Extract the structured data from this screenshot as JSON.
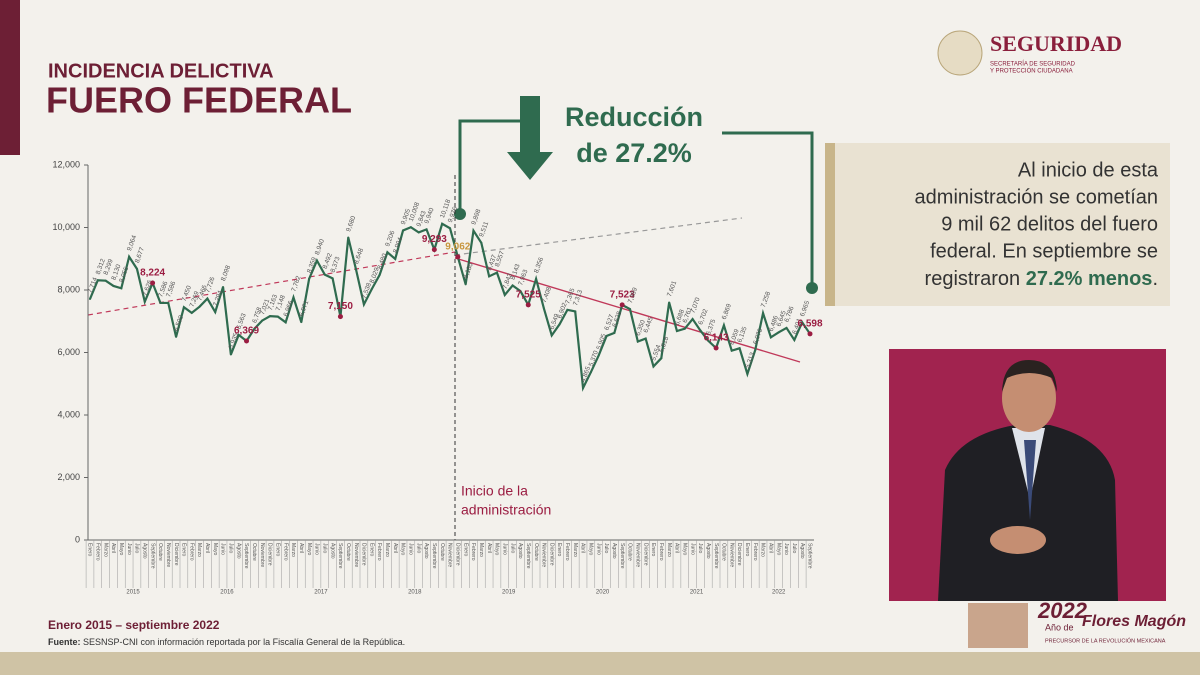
{
  "header": {
    "title_line1": "INCIDENCIA DELICTIVA",
    "title_line2": "FUERO FEDERAL"
  },
  "logo": {
    "name": "SEGURIDAD",
    "sub1": "SECRETARÍA DE SEGURIDAD",
    "sub2": "Y PROTECCIÓN CIUDADANA"
  },
  "chart_data": {
    "type": "line",
    "color": "#2f6b4f",
    "highlight_color": "#9b1d42",
    "annotation": {
      "line1": "Reducción",
      "line2": "de 27.2%"
    },
    "marker_label": {
      "line1": "Inicio de la",
      "line2": "administración"
    },
    "ylim": [
      0,
      12000
    ],
    "yticks": [
      {
        "value": 0,
        "label": "0"
      },
      {
        "value": 2000,
        "label": "2,000"
      },
      {
        "value": 4000,
        "label": "4,000"
      },
      {
        "value": 6000,
        "label": "6,000"
      },
      {
        "value": 8000,
        "label": "8,000"
      },
      {
        "value": 10000,
        "label": "10,000"
      },
      {
        "value": 12000,
        "label": "12,000"
      }
    ],
    "years": [
      "2015",
      "2016",
      "2017",
      "2018",
      "2019",
      "2020",
      "2021",
      "2022"
    ],
    "categories": [
      "Enero",
      "Febrero",
      "Marzo",
      "Abril",
      "Mayo",
      "Junio",
      "Julio",
      "Agosto",
      "Septiembre",
      "Octubre",
      "Noviembre",
      "Diciembre",
      "Enero",
      "Febrero",
      "Marzo",
      "Abril",
      "Mayo",
      "Junio",
      "Julio",
      "Agosto",
      "Septiembre",
      "Octubre",
      "Noviembre",
      "Diciembre",
      "Enero",
      "Febrero",
      "Marzo",
      "Abril",
      "Mayo",
      "Junio",
      "Julio",
      "Agosto",
      "Septiembre",
      "Octubre",
      "Noviembre",
      "Diciembre",
      "Enero",
      "Febrero",
      "Marzo",
      "Abril",
      "Mayo",
      "Junio",
      "Julio",
      "Agosto",
      "Septiembre",
      "Octubre",
      "Noviembre",
      "Diciembre",
      "Enero",
      "Febrero",
      "Marzo",
      "Abril",
      "Mayo",
      "Junio",
      "Julio",
      "Agosto",
      "Septiembre",
      "Octubre",
      "Noviembre",
      "Diciembre",
      "Enero",
      "Febrero",
      "Marzo",
      "Abril",
      "Mayo",
      "Junio",
      "Julio",
      "Agosto",
      "Septiembre",
      "Octubre",
      "Noviembre",
      "Diciembre",
      "Enero",
      "Febrero",
      "Marzo",
      "Abril",
      "Mayo",
      "Junio",
      "Julio",
      "Agosto",
      "Septiembre",
      "Octubre",
      "Noviembre",
      "Diciembre",
      "Enero",
      "Febrero",
      "Marzo",
      "Abril",
      "Mayo",
      "Junio",
      "Julio",
      "Agosto",
      "Septiembre"
    ],
    "values": [
      7714,
      8312,
      8299,
      8130,
      8055,
      9064,
      8677,
      7626,
      8224,
      7586,
      7586,
      6500,
      7450,
      7269,
      7466,
      7726,
      7294,
      8098,
      5935,
      6563,
      6369,
      6758,
      7021,
      7163,
      7148,
      6966,
      7762,
      6971,
      8359,
      8940,
      8492,
      8373,
      7150,
      9680,
      8648,
      7538,
      8029,
      8480,
      9206,
      8994,
      9905,
      10008,
      9843,
      9940,
      9293,
      10118,
      9976,
      9062,
      8180,
      9898,
      9511,
      8437,
      8557,
      7843,
      8143,
      7963,
      7525,
      8356,
      7408,
      6549,
      6902,
      7365,
      7313,
      4865,
      5370,
      5905,
      6527,
      6628,
      7523,
      7389,
      6350,
      6445,
      5554,
      5818,
      7601,
      6688,
      6761,
      7070,
      6702,
      6375,
      6143,
      6869,
      6059,
      6135,
      5313,
      6076,
      7258,
      6486,
      6645,
      6786,
      6401,
      6965,
      6598
    ],
    "value_labels": [
      "7,714",
      "8,312",
      "8,299",
      "8,130",
      "8,055",
      "9,064",
      "8,677",
      "7,626",
      "8,224",
      "7,586",
      "7,586",
      "6,500",
      "7,450",
      "7,269",
      "7,466",
      "7,726",
      "7,294",
      "8,098",
      "5,935",
      "6,563",
      "6,369",
      "6,758",
      "7,021",
      "7,163",
      "7,148",
      "6,966",
      "7,762",
      "6,971",
      "8,359",
      "8,940",
      "8,492",
      "8,373",
      "7,150",
      "9,680",
      "8,648",
      "7,538",
      "8,029",
      "8,480",
      "9,206",
      "8,994",
      "9,905",
      "10,008",
      "9,843",
      "9,940",
      "9,293",
      "10,118",
      "9,976",
      "9,062",
      "8,180",
      "9,898",
      "9,511",
      "8,437",
      "8,557",
      "7,843",
      "8,143",
      "7,963",
      "7,525",
      "8,356",
      "7,408",
      "6,549",
      "6,902",
      "7,365",
      "7,313",
      "4,865",
      "5,370",
      "5,905",
      "6,527",
      "6,628",
      "7,523",
      "7,389",
      "6,350",
      "6,445",
      "5,554",
      "5,818",
      "7,601",
      "6,688",
      "6,761",
      "7,070",
      "6,702",
      "6,375",
      "6,143",
      "6,869",
      "6,059",
      "6,135",
      "5,313",
      "6,076",
      "7,258",
      "6,486",
      "6,645",
      "6,786",
      "6,401",
      "6,965",
      "6,598"
    ],
    "highlight_indices": [
      8,
      20,
      32,
      44,
      47,
      56,
      68,
      80,
      92
    ]
  },
  "box": {
    "lines": [
      "Al inicio de esta",
      "administración se cometían",
      "9 mil 62 delitos del fuero",
      "federal. En septiembre se"
    ],
    "last_start": "registraron ",
    "last_bold": "27.2% menos",
    "last_end": "."
  },
  "footer": {
    "period": "Enero 2015 – septiembre 2022",
    "source_label": "Fuente:",
    "source_text": "SESNSP-CNI con información reportada por la Fiscalía General de la República."
  },
  "banner": {
    "year": "2022",
    "mid": "Año de",
    "name": "Flores Magón",
    "sub": "PRECURSOR DE LA REVOLUCIÓN MEXICANA"
  }
}
